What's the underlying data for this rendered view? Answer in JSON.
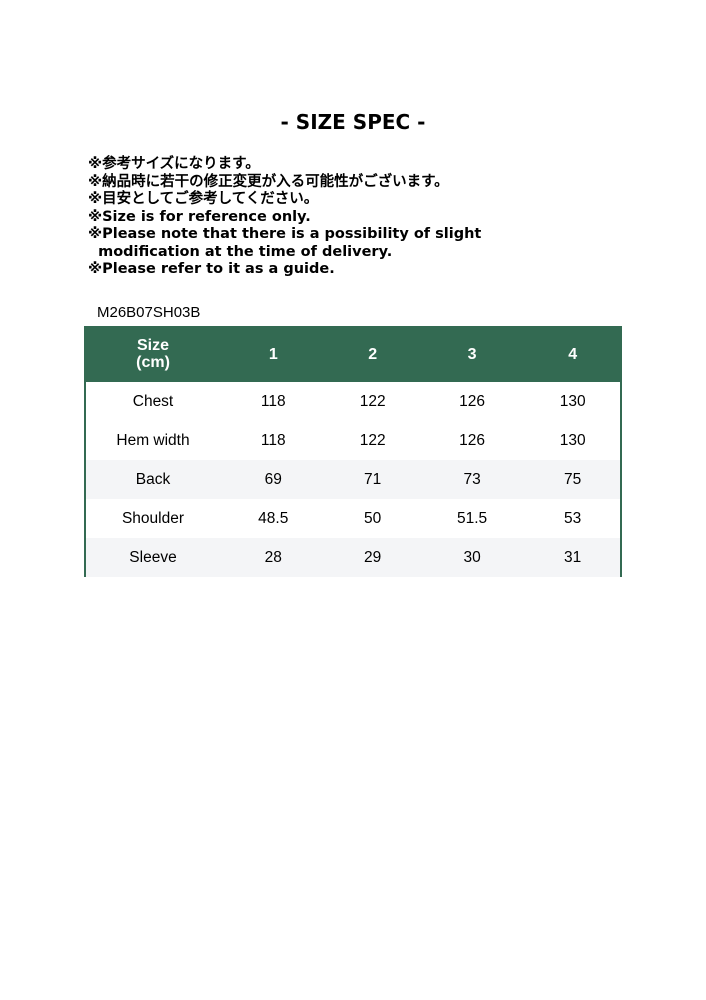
{
  "title": "- SIZE SPEC -",
  "notes": [
    "※参考サイズになります。",
    "※納品時に若干の修正変更が入る可能性がございます。",
    "※目安としてご参考してください。",
    "※Size is for reference only.",
    "※Please note that there is a possibility of slight",
    "  modification at the time of delivery.",
    "※Please refer to it as a guide."
  ],
  "product_code": "M26B07SH03B",
  "table": {
    "header_label": "Size",
    "header_unit": "(cm)",
    "sizes": [
      "1",
      "2",
      "3",
      "4"
    ],
    "rows": [
      {
        "label": "Chest",
        "values": [
          "118",
          "122",
          "126",
          "130"
        ]
      },
      {
        "label": "Hem width",
        "values": [
          "118",
          "122",
          "126",
          "130"
        ]
      },
      {
        "label": "Back",
        "values": [
          "69",
          "71",
          "73",
          "75"
        ]
      },
      {
        "label": "Shoulder",
        "values": [
          "48.5",
          "50",
          "51.5",
          "53"
        ]
      },
      {
        "label": "Sleeve",
        "values": [
          "28",
          "29",
          "30",
          "31"
        ]
      }
    ]
  },
  "colors": {
    "header": "#336a52",
    "stripe": "#f4f5f7"
  }
}
